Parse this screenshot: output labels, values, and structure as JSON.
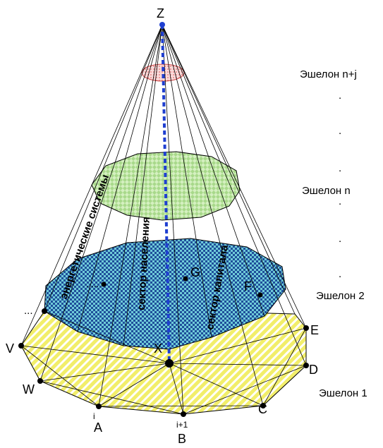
{
  "apex": {
    "label": "Z"
  },
  "center": {
    "label": "X"
  },
  "vertices": {
    "V": "V",
    "W": "W",
    "A": "A",
    "B": "B",
    "C": "C",
    "D": "D",
    "E": "E",
    "index_i": "i",
    "index_i1": "i+1"
  },
  "inner_points": {
    "G": "G",
    "F": "F"
  },
  "ellipsis": {
    "left_dots": ".....",
    "vertex_dots": "..."
  },
  "sectors": {
    "energy": "энергетические системы",
    "population": "сектор населения",
    "capital": "сектор капитала"
  },
  "echelons": {
    "e1": "Эшелон 1",
    "e2": "Эшелон 2",
    "en": "Эшелон n",
    "enj": "Эшелон n+j",
    "dot": "."
  },
  "colors": {
    "level1_fill": "#f2ee6a",
    "level1_stripe": "#ffffff",
    "level2_fill": "#3fb3c7",
    "level2_pattern": "#1f4f9a",
    "leveln_fill": "#bfe8a6",
    "levelnj_fill": "#f6c6c6",
    "axis": "#1f3fd0"
  }
}
